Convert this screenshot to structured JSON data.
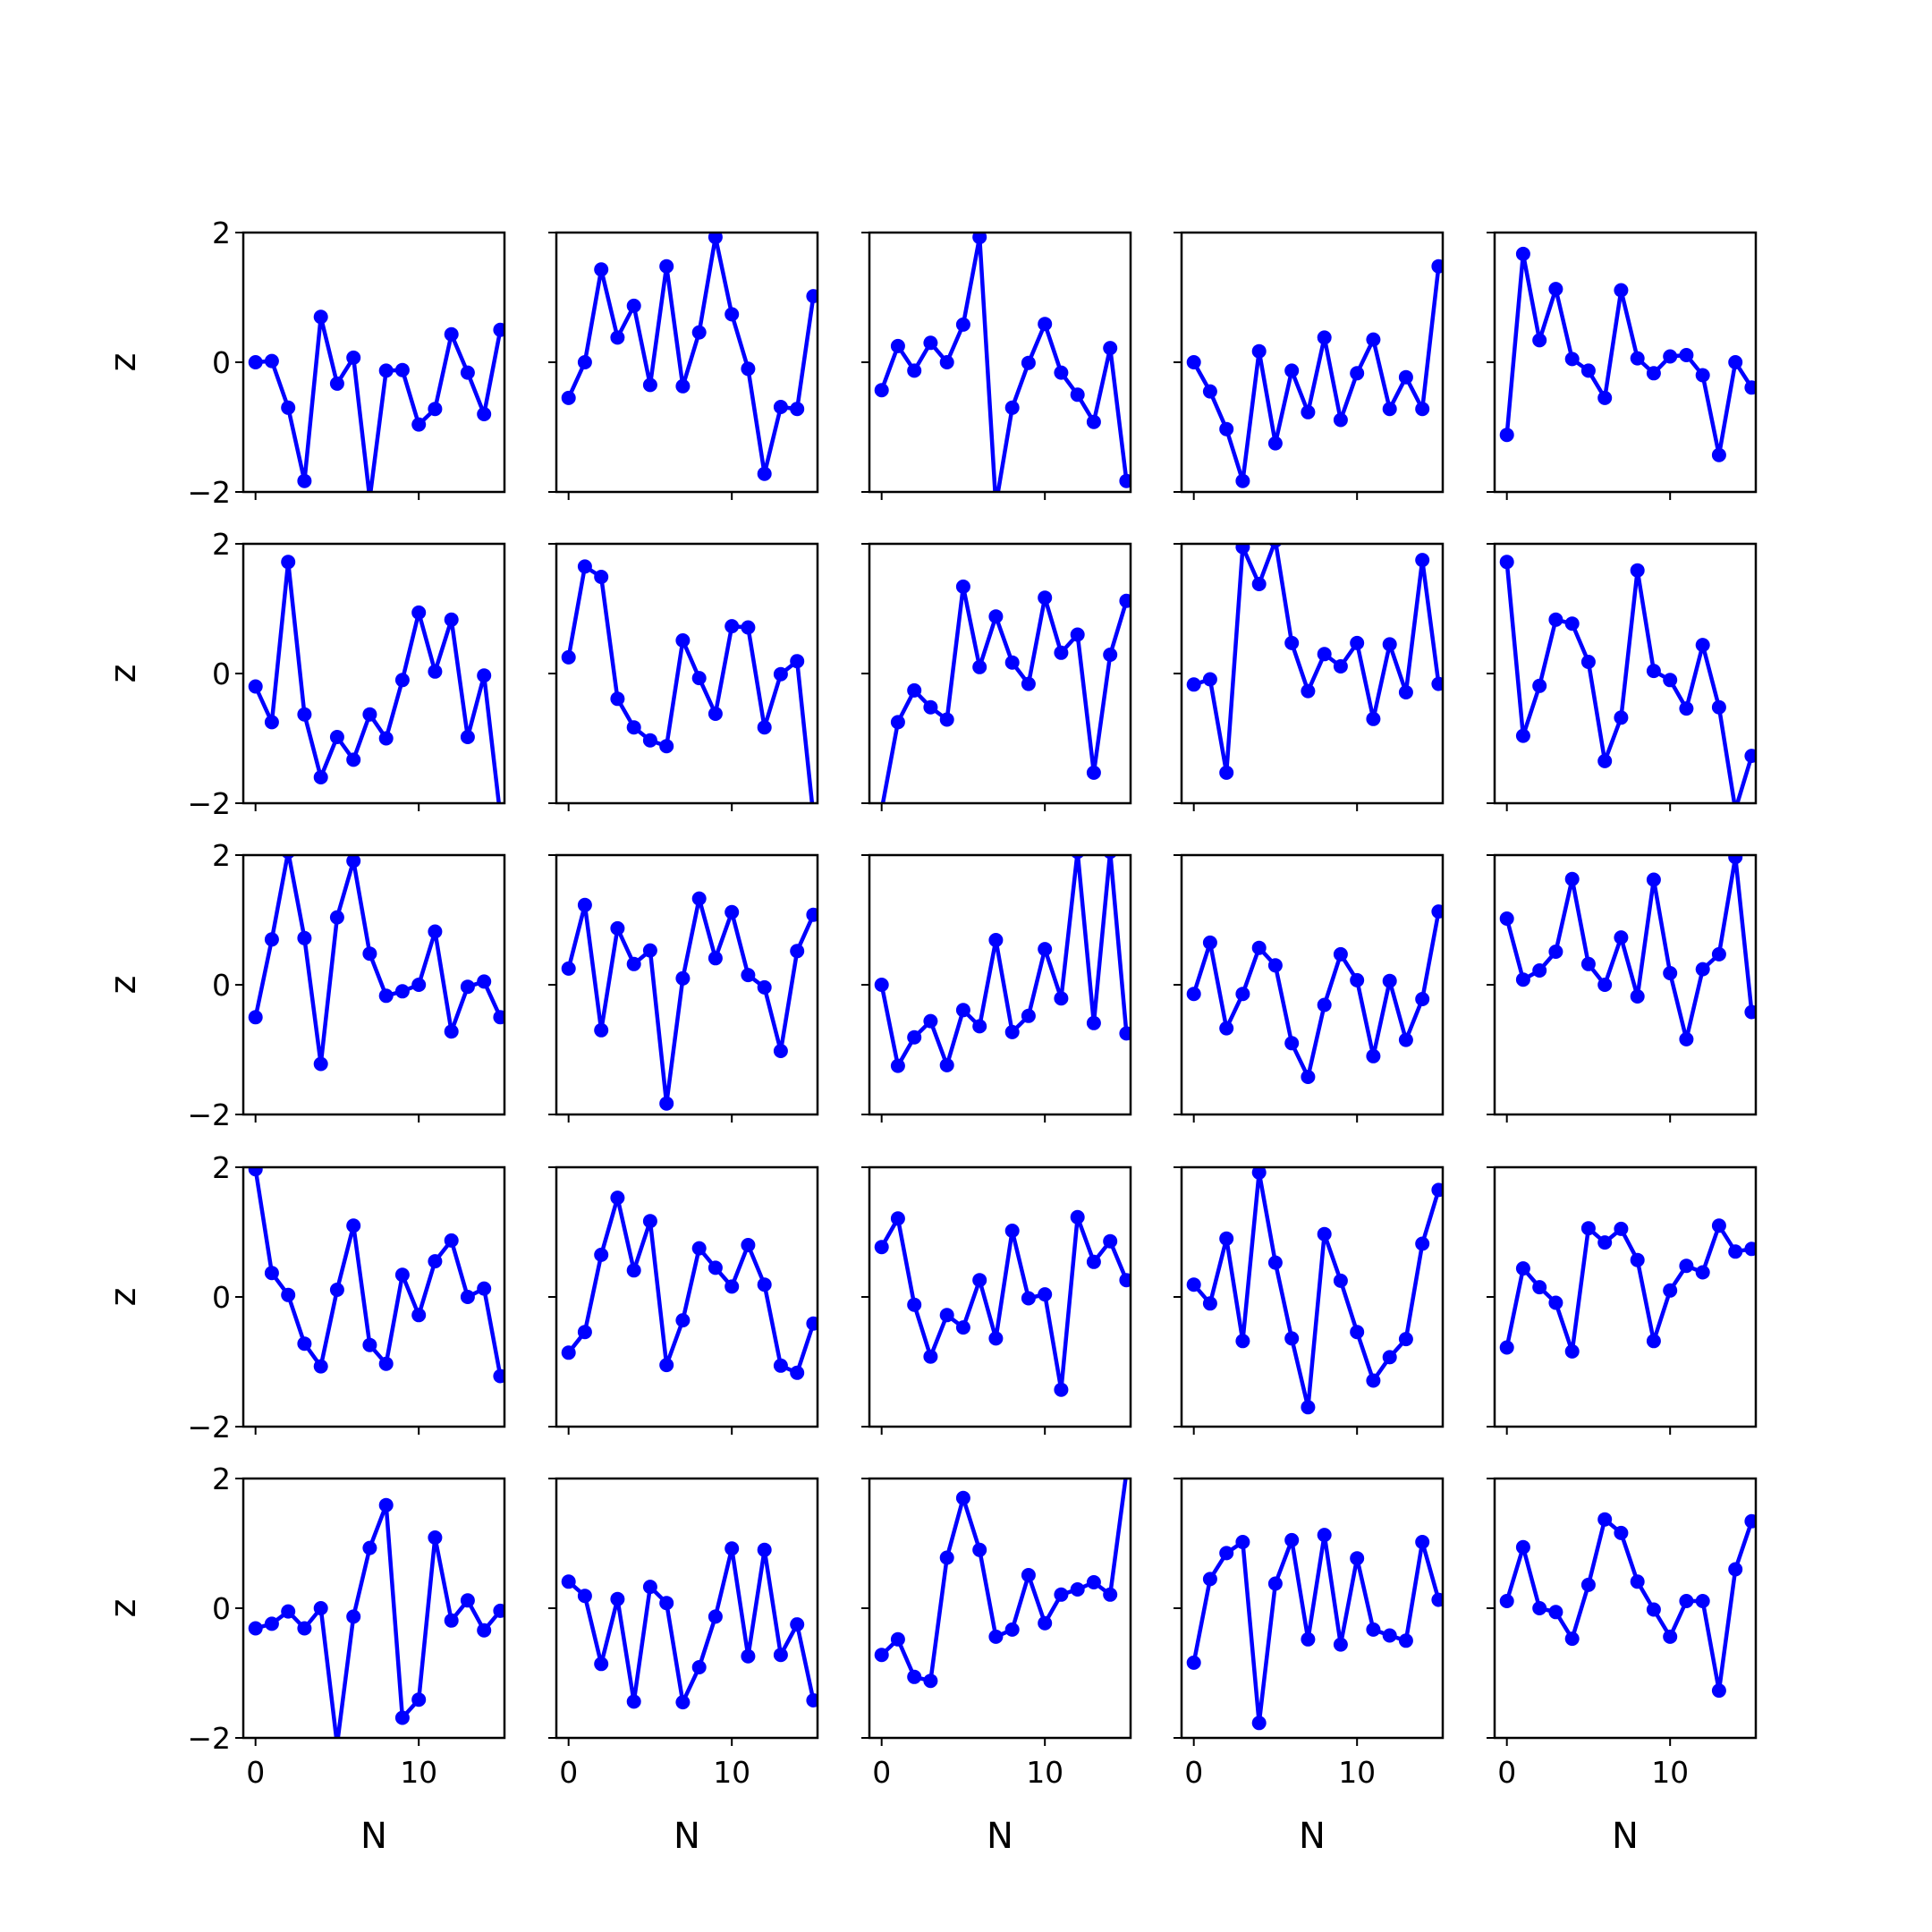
{
  "chart_data": {
    "type": "line",
    "layout": "5x5 small multiples, shared x and y axes",
    "x_label": "N",
    "y_label": "z",
    "xlim": [
      -0.75,
      15.25
    ],
    "ylim": [
      -2,
      2
    ],
    "x_ticks": [
      0,
      10
    ],
    "y_ticks": [
      -2,
      0,
      2
    ],
    "y_tick_labels": [
      "−2",
      "0",
      "2"
    ],
    "x_tick_labels": [
      "0",
      "10"
    ],
    "line_color": "#0000ff",
    "marker": "circle",
    "grid": false,
    "x": [
      0,
      1,
      2,
      3,
      4,
      5,
      6,
      7,
      8,
      9,
      10,
      11,
      12,
      13,
      14,
      15
    ],
    "panels": [
      {
        "values": [
          0.0,
          0.02,
          -0.7,
          -1.83,
          0.7,
          -0.33,
          0.07,
          -2.1,
          -0.13,
          -0.12,
          -0.96,
          -0.72,
          0.43,
          -0.16,
          -0.8,
          0.5
        ]
      },
      {
        "values": [
          -0.55,
          0.0,
          1.43,
          0.38,
          0.87,
          -0.35,
          1.48,
          -0.37,
          0.46,
          1.93,
          0.74,
          -0.1,
          -1.72,
          -0.69,
          -0.72,
          1.02
        ]
      },
      {
        "values": [
          -0.43,
          0.25,
          -0.13,
          0.3,
          0.0,
          0.58,
          1.93,
          -2.2,
          -0.7,
          -0.01,
          0.59,
          -0.16,
          -0.5,
          -0.92,
          0.22,
          -1.83
        ]
      },
      {
        "values": [
          0.0,
          -0.45,
          -1.03,
          -1.83,
          0.17,
          -1.25,
          -0.13,
          -0.77,
          0.38,
          -0.89,
          -0.17,
          0.35,
          -0.72,
          -0.23,
          -0.72,
          1.48
        ]
      },
      {
        "values": [
          -1.12,
          1.67,
          0.34,
          1.13,
          0.05,
          -0.13,
          -0.55,
          1.11,
          0.06,
          -0.17,
          0.09,
          0.11,
          -0.2,
          -1.43,
          0.0,
          -0.39
        ]
      },
      {
        "values": [
          -0.2,
          -0.75,
          1.72,
          -0.63,
          -1.6,
          -0.98,
          -1.33,
          -0.63,
          -1.0,
          -0.1,
          0.94,
          0.03,
          0.83,
          -0.98,
          -0.03,
          -2.2
        ]
      },
      {
        "values": [
          0.25,
          1.65,
          1.49,
          -0.39,
          -0.83,
          -1.03,
          -1.12,
          0.51,
          -0.07,
          -0.62,
          0.73,
          0.71,
          -0.83,
          -0.01,
          0.19,
          -2.2
        ]
      },
      {
        "values": [
          -2.1,
          -0.75,
          -0.26,
          -0.52,
          -0.71,
          1.34,
          0.1,
          0.88,
          0.17,
          -0.16,
          1.17,
          0.32,
          0.6,
          -1.53,
          0.29,
          1.12
        ]
      },
      {
        "values": [
          -0.17,
          -0.09,
          -1.53,
          1.95,
          1.38,
          2.05,
          0.47,
          -0.27,
          0.3,
          0.11,
          0.47,
          -0.7,
          0.45,
          -0.29,
          1.75,
          -0.16
        ]
      },
      {
        "values": [
          1.72,
          -0.96,
          -0.19,
          0.83,
          0.77,
          0.18,
          -1.35,
          -0.68,
          1.59,
          0.04,
          -0.1,
          -0.54,
          0.44,
          -0.52,
          -2.1,
          -1.27
        ]
      },
      {
        "values": [
          -0.5,
          0.7,
          2.05,
          0.72,
          -1.22,
          1.04,
          1.91,
          0.48,
          -0.17,
          -0.1,
          0.0,
          0.82,
          -0.72,
          -0.03,
          0.05,
          -0.5
        ]
      },
      {
        "values": [
          0.25,
          1.23,
          -0.7,
          0.87,
          0.32,
          0.53,
          -1.83,
          0.1,
          1.33,
          0.41,
          1.12,
          0.15,
          -0.04,
          -1.02,
          0.52,
          1.08
        ]
      },
      {
        "values": [
          0.0,
          -1.25,
          -0.81,
          -0.56,
          -1.24,
          -0.39,
          -0.64,
          0.69,
          -0.73,
          -0.48,
          0.55,
          -0.21,
          2.05,
          -0.59,
          2.05,
          -0.75
        ]
      },
      {
        "values": [
          -0.14,
          0.65,
          -0.67,
          -0.14,
          0.57,
          0.3,
          -0.9,
          -1.42,
          -0.31,
          0.47,
          0.07,
          -1.1,
          0.06,
          -0.85,
          -0.22,
          1.13
        ]
      },
      {
        "values": [
          1.02,
          0.08,
          0.22,
          0.51,
          1.63,
          0.32,
          0.0,
          0.73,
          -0.18,
          1.62,
          0.18,
          -0.84,
          0.24,
          0.47,
          1.97,
          -0.42
        ]
      },
      {
        "values": [
          1.97,
          0.37,
          0.03,
          -0.72,
          -1.07,
          0.11,
          1.1,
          -0.74,
          -1.03,
          0.34,
          -0.28,
          0.55,
          0.87,
          0.0,
          0.13,
          -1.22
        ]
      },
      {
        "values": [
          -0.86,
          -0.54,
          0.65,
          1.53,
          0.41,
          1.17,
          -1.05,
          -0.36,
          0.75,
          0.45,
          0.16,
          0.8,
          0.19,
          -1.06,
          -1.17,
          -0.41
        ]
      },
      {
        "values": [
          0.77,
          1.21,
          -0.12,
          -0.92,
          -0.28,
          -0.47,
          0.26,
          -0.64,
          1.02,
          -0.02,
          0.04,
          -1.43,
          1.23,
          0.54,
          0.86,
          0.26
        ]
      },
      {
        "values": [
          0.19,
          -0.1,
          0.9,
          -0.68,
          1.92,
          0.53,
          -0.64,
          -1.7,
          0.97,
          0.25,
          -0.54,
          -1.29,
          -0.93,
          -0.65,
          0.82,
          1.65
        ]
      },
      {
        "values": [
          -0.78,
          0.44,
          0.15,
          -0.09,
          -0.84,
          1.06,
          0.84,
          1.05,
          0.57,
          -0.68,
          0.1,
          0.48,
          0.38,
          1.1,
          0.7,
          0.74
        ]
      },
      {
        "values": [
          -0.31,
          -0.24,
          -0.05,
          -0.31,
          0.0,
          -2.1,
          -0.13,
          0.93,
          1.59,
          -1.69,
          -1.41,
          1.09,
          -0.19,
          0.12,
          -0.34,
          -0.04
        ]
      },
      {
        "values": [
          0.41,
          0.19,
          -0.86,
          0.14,
          -1.44,
          0.33,
          0.08,
          -1.45,
          -0.91,
          -0.13,
          0.92,
          -0.74,
          0.9,
          -0.72,
          -0.25,
          -1.42
        ]
      },
      {
        "values": [
          -0.72,
          -0.48,
          -1.06,
          -1.12,
          0.78,
          1.7,
          0.9,
          -0.44,
          -0.33,
          0.51,
          -0.23,
          0.21,
          0.29,
          0.4,
          0.21,
          2.1
        ]
      },
      {
        "values": [
          -0.84,
          0.45,
          0.85,
          1.02,
          -1.77,
          0.38,
          1.05,
          -0.48,
          1.13,
          -0.56,
          0.77,
          -0.33,
          -0.42,
          -0.5,
          1.02,
          0.13
        ]
      },
      {
        "values": [
          0.11,
          0.94,
          0.0,
          -0.06,
          -0.47,
          0.36,
          1.37,
          1.16,
          0.41,
          -0.02,
          -0.44,
          0.11,
          0.11,
          -1.27,
          0.6,
          1.34
        ]
      }
    ]
  }
}
